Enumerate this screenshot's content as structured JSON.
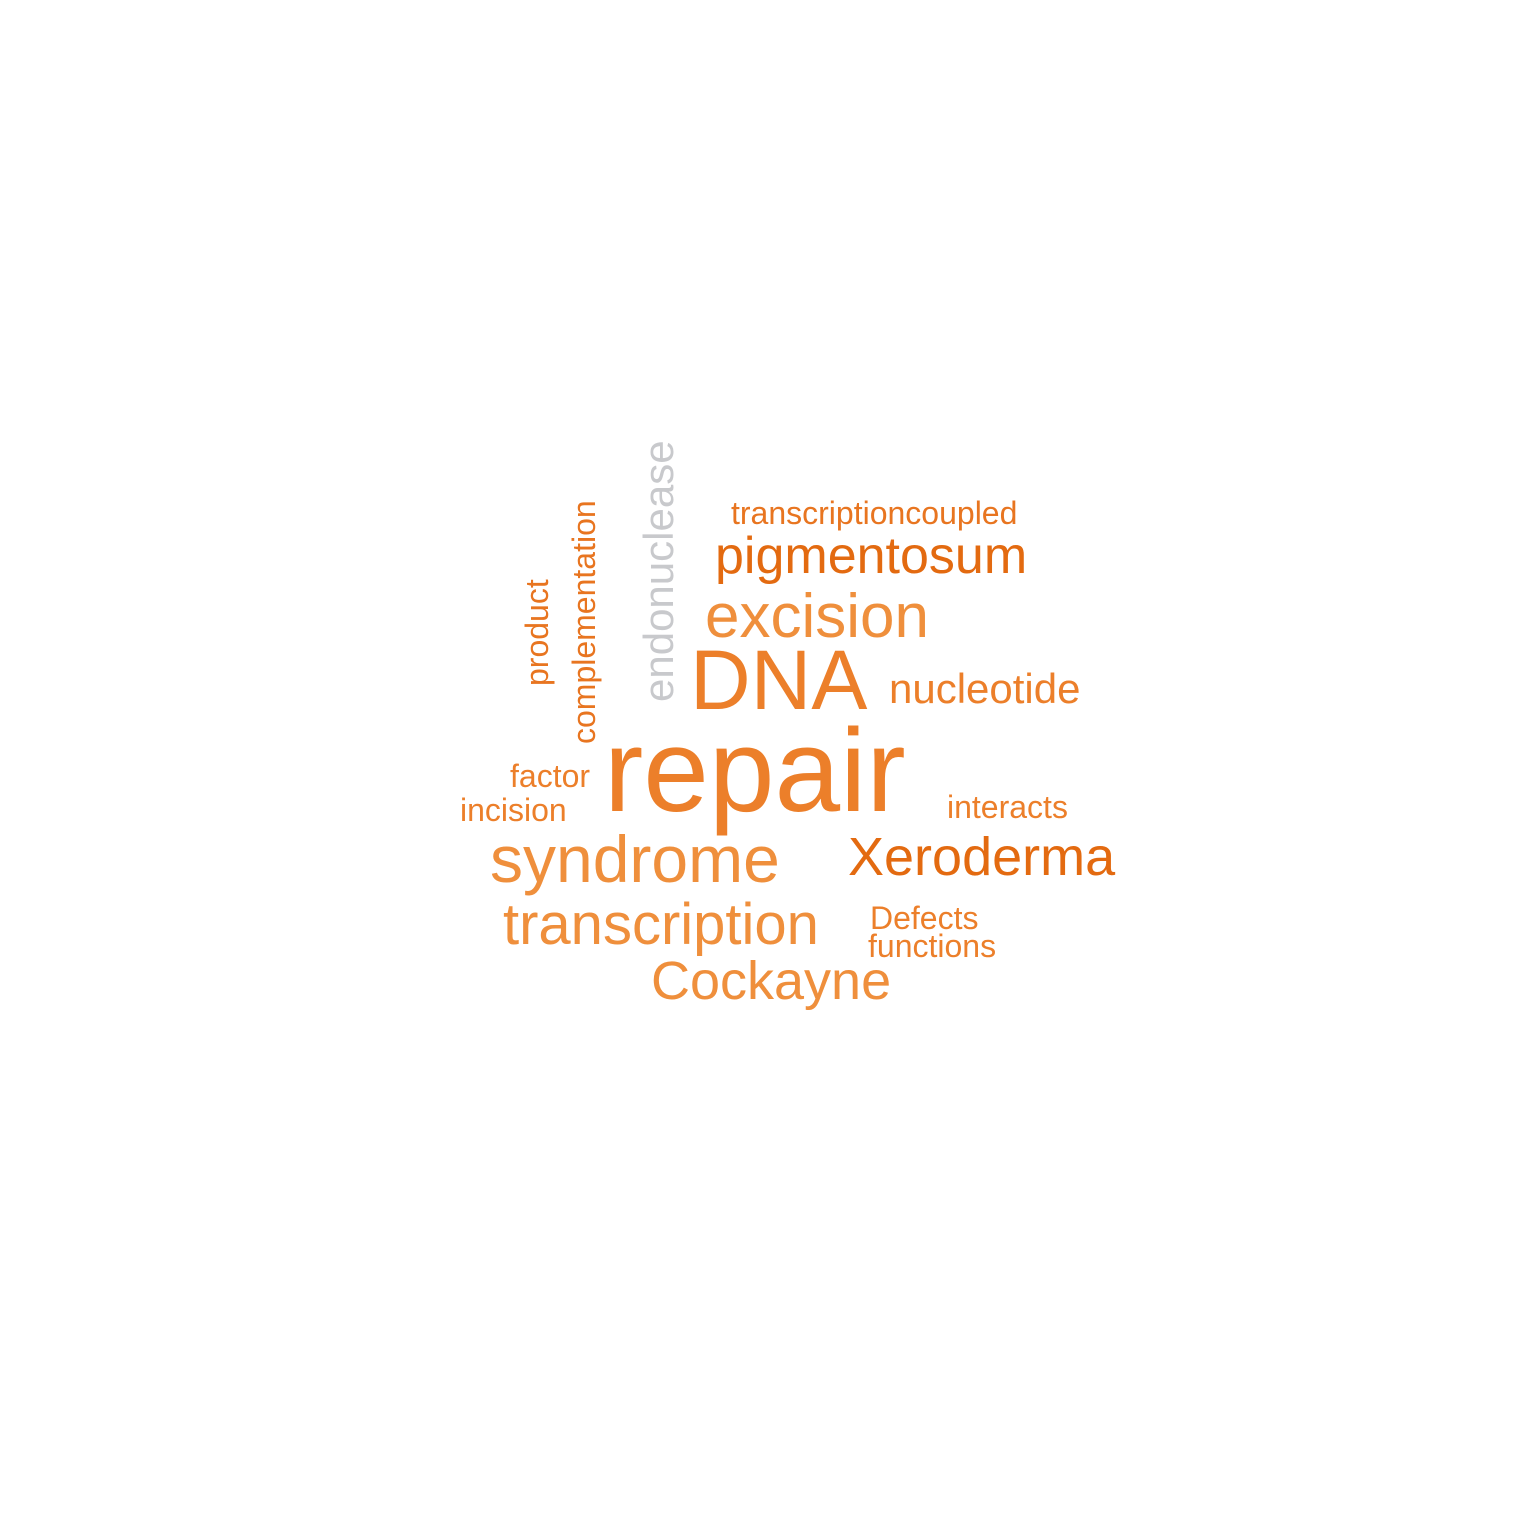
{
  "words": {
    "repair": {
      "text": "repair",
      "color": "#ec7f2a"
    },
    "dna": {
      "text": "DNA",
      "color": "#ec7f2a"
    },
    "excision": {
      "text": "excision",
      "color": "#ef8f3c"
    },
    "pigmentosum": {
      "text": "pigmentosum",
      "color": "#e36a10"
    },
    "transcriptioncoupled": {
      "text": "transcriptioncoupled",
      "color": "#e87520"
    },
    "nucleotide": {
      "text": "nucleotide",
      "color": "#ec7f2a"
    },
    "syndrome": {
      "text": "syndrome",
      "color": "#ef8f3c"
    },
    "xeroderma": {
      "text": "Xeroderma",
      "color": "#e36a10"
    },
    "transcription": {
      "text": "transcription",
      "color": "#ef8f3c"
    },
    "cockayne": {
      "text": "Cockayne",
      "color": "#ef8f3c"
    },
    "defects": {
      "text": "Defects",
      "color": "#ec7f2a"
    },
    "functions": {
      "text": "functions",
      "color": "#ec7f2a"
    },
    "interacts": {
      "text": "interacts",
      "color": "#ec7f2a"
    },
    "factor": {
      "text": "factor",
      "color": "#ec7f2a"
    },
    "incision": {
      "text": "incision",
      "color": "#ec7f2a"
    },
    "endonuclease": {
      "text": "endonuclease",
      "color": "#c8c9cc"
    },
    "complementation": {
      "text": "complementation",
      "color": "#e87520"
    },
    "product": {
      "text": "product",
      "color": "#e87520"
    }
  }
}
